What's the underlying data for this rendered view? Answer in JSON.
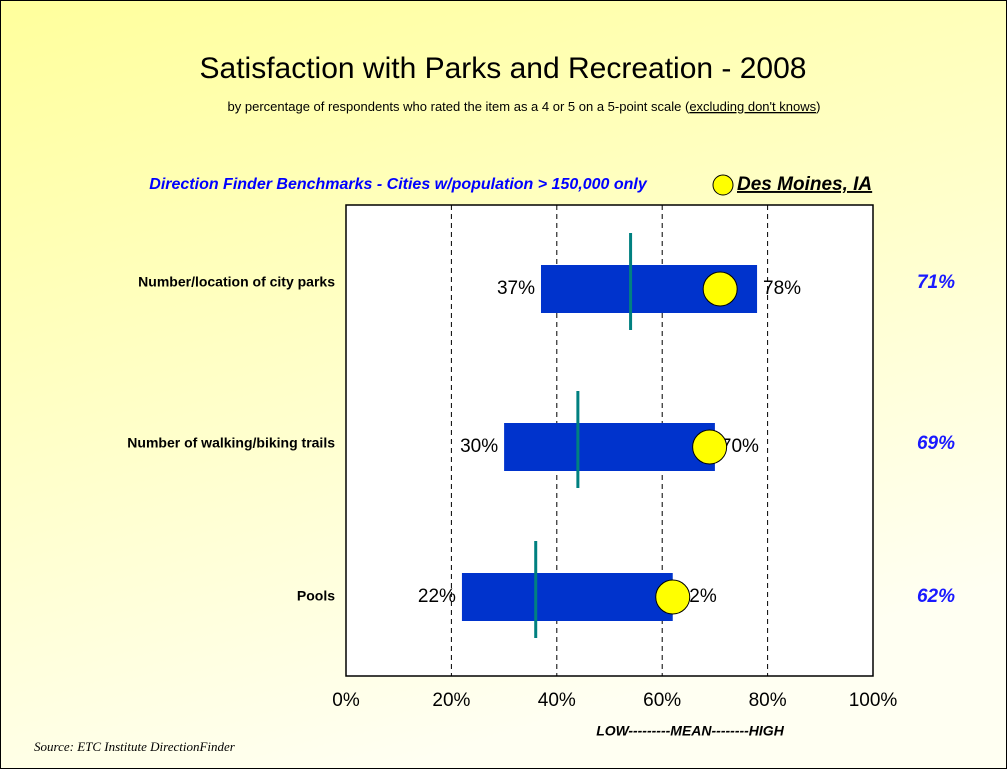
{
  "chart_data": {
    "type": "range",
    "title": "Satisfaction with Parks and Recreation - 2008",
    "subtitle_parts": [
      "by percentage of respondents who rated the item as a 4 or 5 on a 5-point scale (",
      "excluding don't knows",
      ")"
    ],
    "benchmark_label": "Direction Finder Benchmarks - Cities w/population > 150,000 only",
    "x_label": "LOW---------MEAN--------HIGH",
    "source": "Source:  ETC Institute DirectionFinder",
    "categories": [
      "Number/location of city parks",
      "Number of walking/biking trails",
      "Pools"
    ],
    "low": [
      37,
      30,
      22
    ],
    "low_labels": [
      "37%",
      "30%",
      "22%"
    ],
    "high": [
      78,
      70,
      62
    ],
    "high_labels": [
      "78%",
      "70%",
      "62%"
    ],
    "mean": [
      54,
      44,
      36
    ],
    "bar_color": "#0033cc",
    "mean_color": "#008080",
    "series": [
      {
        "name": "Des Moines, IA",
        "color": "#ffff00",
        "values": [
          71,
          69,
          62
        ],
        "value_labels": [
          "71%",
          "69%",
          "62%"
        ]
      }
    ],
    "xlim": [
      0,
      100
    ],
    "xticks": [
      {
        "value": 0,
        "label": "0%"
      },
      {
        "value": 20,
        "label": "20%"
      },
      {
        "value": 40,
        "label": "40%"
      },
      {
        "value": 60,
        "label": "60%"
      },
      {
        "value": 80,
        "label": "80%"
      },
      {
        "value": 100,
        "label": "100%"
      }
    ],
    "grid": true
  }
}
